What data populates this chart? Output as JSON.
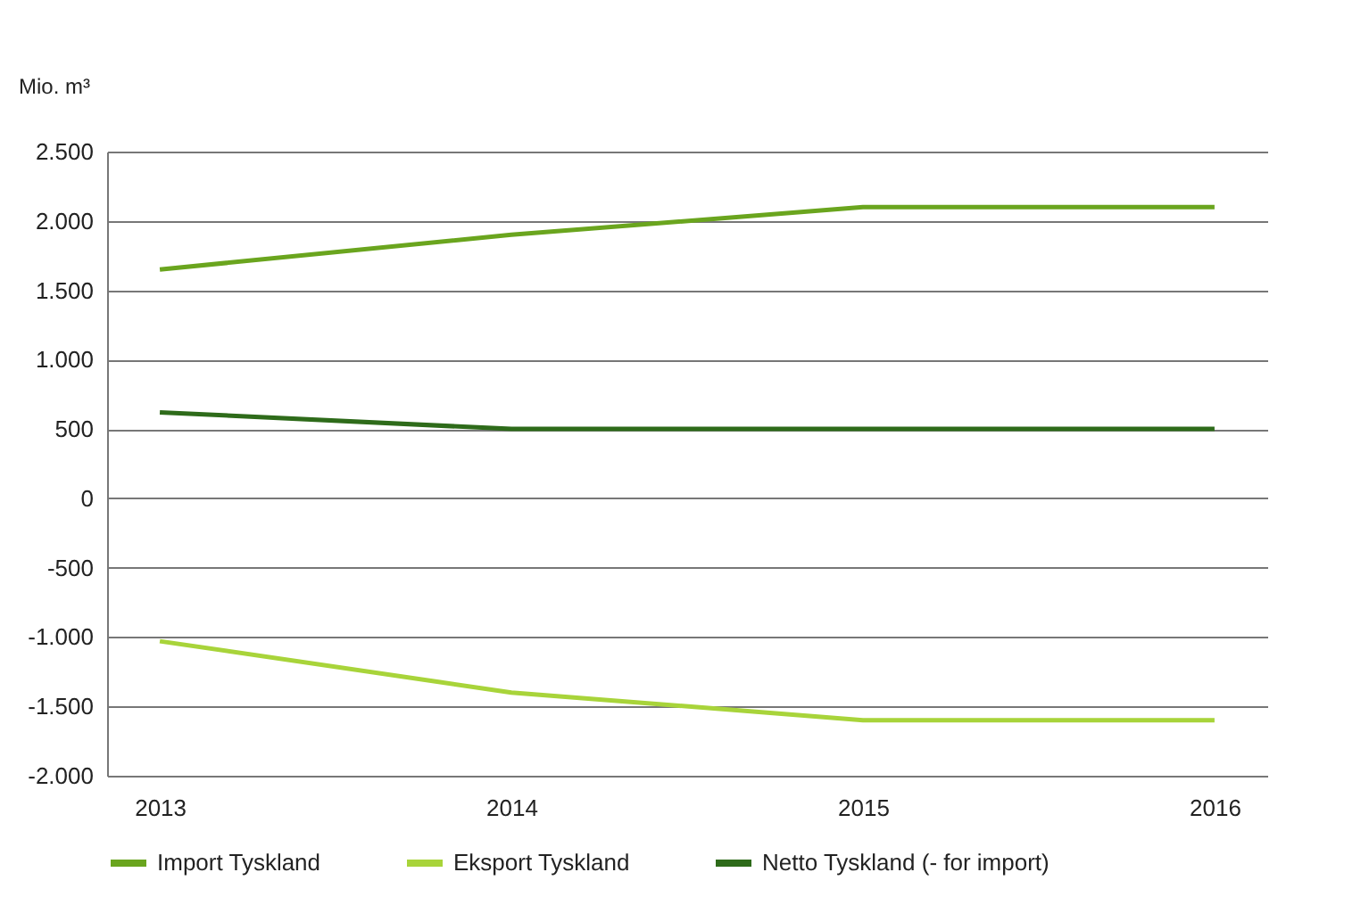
{
  "chart_data": {
    "type": "line",
    "ylabel": "Mio. m³",
    "categories": [
      "2013",
      "2014",
      "2015",
      "2016"
    ],
    "series": [
      {
        "name": "Import Tyskland",
        "color": "#6aa51e",
        "values": [
          1650,
          1900,
          2100,
          2100
        ]
      },
      {
        "name": "Eksport Tyskland",
        "color": "#a8d43a",
        "values": [
          -1030,
          -1400,
          -1600,
          -1600
        ]
      },
      {
        "name": "Netto Tyskland (- for import)",
        "color": "#2e6b1a",
        "values": [
          620,
          500,
          500,
          500
        ]
      }
    ],
    "ylim": [
      -2000,
      2500
    ],
    "yticks": [
      {
        "value": -2000,
        "label": "-2.000"
      },
      {
        "value": -1500,
        "label": "-1.500"
      },
      {
        "value": -1000,
        "label": "-1.000"
      },
      {
        "value": -500,
        "label": "-500"
      },
      {
        "value": 0,
        "label": "0"
      },
      {
        "value": 500,
        "label": "500"
      },
      {
        "value": 1000,
        "label": "1.000"
      },
      {
        "value": 1500,
        "label": "1.500"
      },
      {
        "value": 2000,
        "label": "2.000"
      },
      {
        "value": 2500,
        "label": "2.500"
      }
    ],
    "grid": "y",
    "legend": "bottom",
    "marker": "none",
    "line_style": "solid"
  }
}
